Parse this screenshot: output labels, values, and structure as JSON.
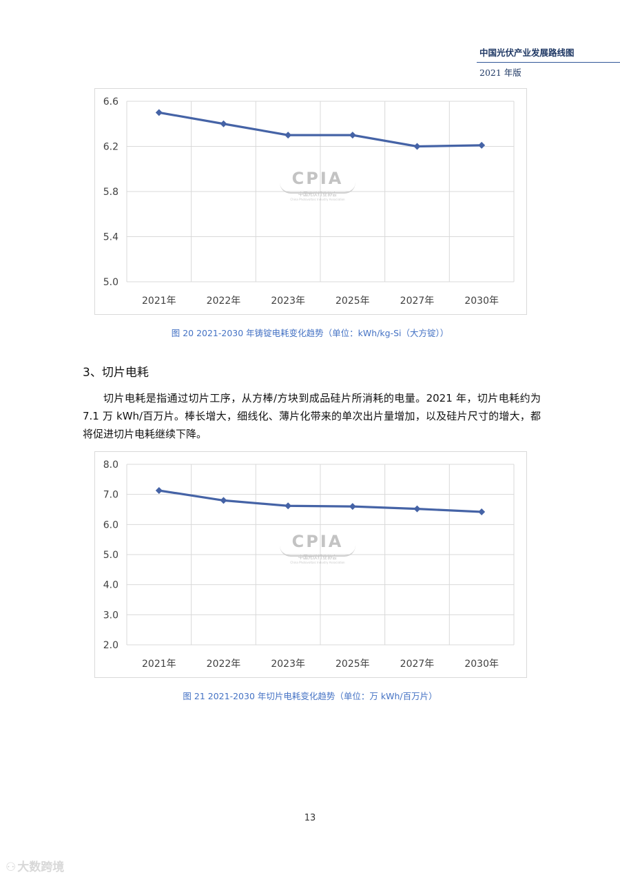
{
  "header": {
    "title": "中国光伏产业发展路线图",
    "edition": "2021 年版"
  },
  "watermark": {
    "main": "CPIA",
    "cn": "中国光伏行业协会",
    "en": "China Photovoltaic Industry Association"
  },
  "figure20": {
    "caption": "图 20   2021-2030 年铸锭电耗变化趋势（单位：kWh/kg-Si（大方锭））"
  },
  "figure21": {
    "caption": "图 21   2021-2030 年切片电耗变化趋势（单位：万 kWh/百万片）"
  },
  "section": {
    "title": "3、切片电耗"
  },
  "paragraph": "切片电耗是指通过切片工序，从方棒/方块到成品硅片所消耗的电量。2021 年，切片电耗约为 7.1 万 kWh/百万片。棒长增大，细线化、薄片化带来的单次出片量增加，以及硅片尺寸的增大，都将促进切片电耗继续下降。",
  "page_number": "13",
  "brand": {
    "icon": "⚇",
    "text": "大数跨境"
  },
  "colors": {
    "series": "#4563a6",
    "grid": "#d9d9d9",
    "caption": "#4472c4",
    "header": "#1f3864"
  },
  "chart_data": [
    {
      "type": "line",
      "categories": [
        "2021年",
        "2022年",
        "2023年",
        "2025年",
        "2027年",
        "2030年"
      ],
      "values": [
        6.5,
        6.4,
        6.3,
        6.3,
        6.2,
        6.21
      ],
      "yticks": [
        "6.6",
        "6.2",
        "5.8",
        "5.4",
        "5.0"
      ],
      "ylim": [
        5.0,
        6.6
      ],
      "marker": "diamond",
      "grid": true
    },
    {
      "type": "line",
      "categories": [
        "2021年",
        "2022年",
        "2023年",
        "2025年",
        "2027年",
        "2030年"
      ],
      "values": [
        7.13,
        6.8,
        6.62,
        6.6,
        6.52,
        6.42
      ],
      "yticks": [
        "8.0",
        "7.0",
        "6.0",
        "5.0",
        "4.0",
        "3.0",
        "2.0"
      ],
      "ylim": [
        2.0,
        8.0
      ],
      "marker": "diamond",
      "grid": true
    }
  ]
}
